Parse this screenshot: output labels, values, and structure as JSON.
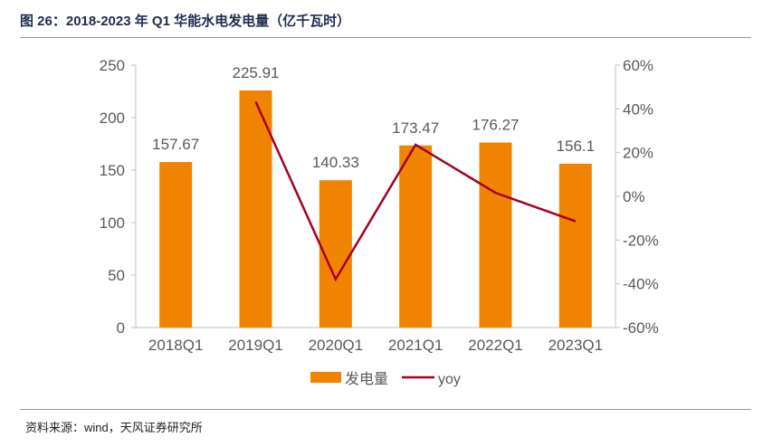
{
  "title": "图 26：2018-2023 年 Q1 华能水电发电量（亿千瓦时）",
  "source": "资料来源：wind，天风证券研究所",
  "colors": {
    "bar": "#F08300",
    "line": "#A50021"
  },
  "chart_data": {
    "type": "bar",
    "categories": [
      "2018Q1",
      "2019Q1",
      "2020Q1",
      "2021Q1",
      "2022Q1",
      "2023Q1"
    ],
    "series": [
      {
        "name": "发电量",
        "type": "bar",
        "axis": "left",
        "values": [
          157.67,
          225.91,
          140.33,
          173.47,
          176.27,
          156.1
        ],
        "labels": [
          "157.67",
          "225.91",
          "140.33",
          "173.47",
          "176.27",
          "156.1"
        ]
      },
      {
        "name": "yoy",
        "type": "line",
        "axis": "right",
        "values": [
          null,
          43.3,
          -37.9,
          23.6,
          1.6,
          -11.4
        ]
      }
    ],
    "ylim": [
      0,
      250
    ],
    "yticks": [
      "0",
      "50",
      "100",
      "150",
      "200",
      "250"
    ],
    "y2lim": [
      -60,
      60
    ],
    "y2ticks": [
      "-60%",
      "-40%",
      "-20%",
      "0%",
      "20%",
      "40%",
      "60%"
    ],
    "legend": "bottom"
  }
}
